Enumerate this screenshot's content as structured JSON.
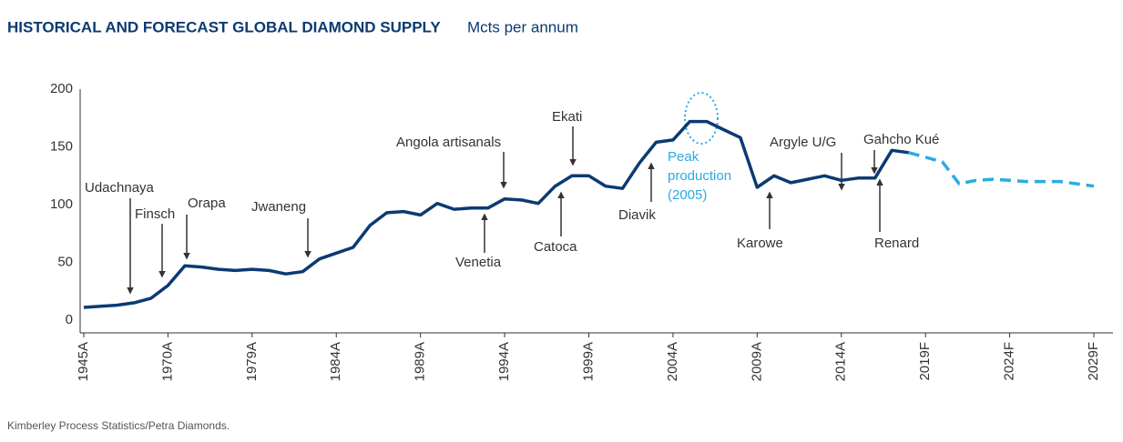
{
  "title": "HISTORICAL AND FORECAST GLOBAL DIAMOND SUPPLY",
  "subtitle": "Mcts per annum",
  "source": "Kimberley Process Statistics/Petra Diamonds.",
  "chart_data": {
    "type": "line",
    "categories": [
      "1945A",
      null,
      null,
      null,
      null,
      "1970A",
      null,
      null,
      null,
      null,
      "1979A",
      null,
      null,
      null,
      null,
      "1984A",
      null,
      null,
      null,
      null,
      "1989A",
      null,
      null,
      null,
      null,
      "1994A",
      null,
      null,
      null,
      null,
      "1999A",
      null,
      null,
      null,
      null,
      "2004A",
      null,
      null,
      null,
      null,
      "2009A",
      null,
      null,
      null,
      null,
      "2014A",
      null,
      null,
      null,
      null,
      "2019F",
      null,
      null,
      null,
      null,
      "2024F",
      null,
      null,
      null,
      null,
      "2029F"
    ],
    "series": [
      {
        "color": "#0b3a73",
        "dashed": false,
        "values": [
          11,
          12,
          13,
          15,
          19,
          30,
          47,
          46,
          44,
          43,
          44,
          43,
          40,
          42,
          53,
          58,
          63,
          82,
          93,
          94,
          91,
          101,
          96,
          97,
          97,
          105,
          104,
          101,
          116,
          125,
          125,
          116,
          114,
          136,
          154,
          156,
          172,
          172,
          165,
          158,
          115,
          125,
          119,
          122,
          125,
          121,
          123,
          123,
          147,
          145,
          null,
          null,
          null,
          null,
          null,
          null,
          null,
          null,
          null,
          null,
          null
        ]
      },
      {
        "color": "#29abe2",
        "dashed": true,
        "values": [
          null,
          null,
          null,
          null,
          null,
          null,
          null,
          null,
          null,
          null,
          null,
          null,
          null,
          null,
          null,
          null,
          null,
          null,
          null,
          null,
          null,
          null,
          null,
          null,
          null,
          null,
          null,
          null,
          null,
          null,
          null,
          null,
          null,
          null,
          null,
          null,
          null,
          null,
          null,
          null,
          null,
          null,
          null,
          null,
          null,
          null,
          null,
          null,
          null,
          145,
          141,
          137,
          118,
          121,
          122,
          121,
          120,
          120,
          120,
          118,
          116
        ]
      }
    ],
    "ylim": [
      0,
      200
    ],
    "yticks": [
      0,
      50,
      100,
      150,
      200
    ],
    "grid": false,
    "annotations": [
      {
        "text": "Udachnaya"
      },
      {
        "text": "Finsch"
      },
      {
        "text": "Orapa"
      },
      {
        "text": "Jwaneng"
      },
      {
        "text": "Angola artisanals"
      },
      {
        "text": "Venetia"
      },
      {
        "text": "Ekati"
      },
      {
        "text": "Catoca"
      },
      {
        "text": "Diavik"
      },
      {
        "text": "Argyle U/G"
      },
      {
        "text": "Karowe"
      },
      {
        "text": "Gahcho Kué"
      },
      {
        "text": "Renard"
      }
    ],
    "peak_note": {
      "lines": [
        "Peak",
        "production",
        "(2005)"
      ],
      "color": "#29abe2"
    }
  }
}
